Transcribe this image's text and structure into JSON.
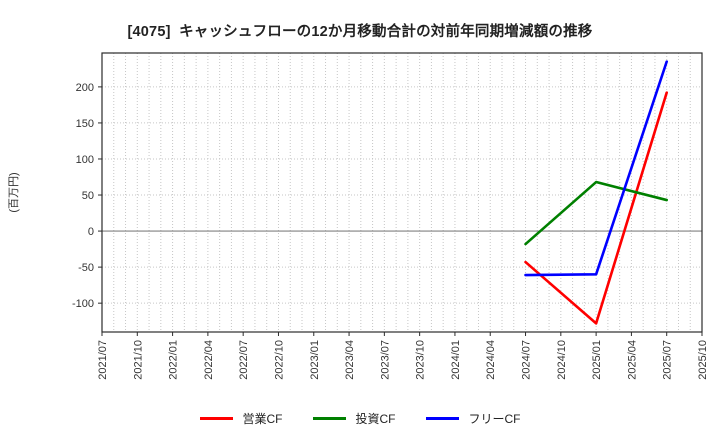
{
  "chart_data": {
    "type": "line",
    "title": "[4075]  キャッシュフローの12か月移動合計の対前年同期増減額の推移",
    "ylabel": "(百万円)",
    "x_tick_labels": [
      "2021/07",
      "2021/10",
      "2022/01",
      "2022/04",
      "2022/07",
      "2022/10",
      "2023/01",
      "2023/04",
      "2023/07",
      "2023/10",
      "2024/01",
      "2024/04",
      "2024/07",
      "2024/10",
      "2025/01",
      "2025/04",
      "2025/07",
      "2025/10"
    ],
    "x_axis": {
      "first_month": "2021/07",
      "last_month": "2025/10",
      "months_span": 51,
      "grid": "monthly-dotted"
    },
    "ylim": [
      -140,
      247
    ],
    "y_ticks": [
      -100,
      -50,
      0,
      50,
      100,
      150,
      200
    ],
    "zero_line": 0,
    "legend_position": "bottom-center",
    "x": [
      "2024/07",
      "2025/01",
      "2025/07"
    ],
    "series": [
      {
        "name": "営業CF",
        "color": "#ff0000",
        "values": [
          -43,
          -128,
          192
        ]
      },
      {
        "name": "投資CF",
        "color": "#008000",
        "values": [
          -18,
          68,
          43
        ]
      },
      {
        "name": "フリーCF",
        "color": "#0000ff",
        "values": [
          -61,
          -60,
          235
        ]
      }
    ]
  },
  "colors": {
    "grid": "#c6c6c6",
    "zero_line": "#808080",
    "axis_frame": "#2b2b2b",
    "tick_text": "#333333",
    "title_text": "#222222",
    "background": "#ffffff"
  }
}
